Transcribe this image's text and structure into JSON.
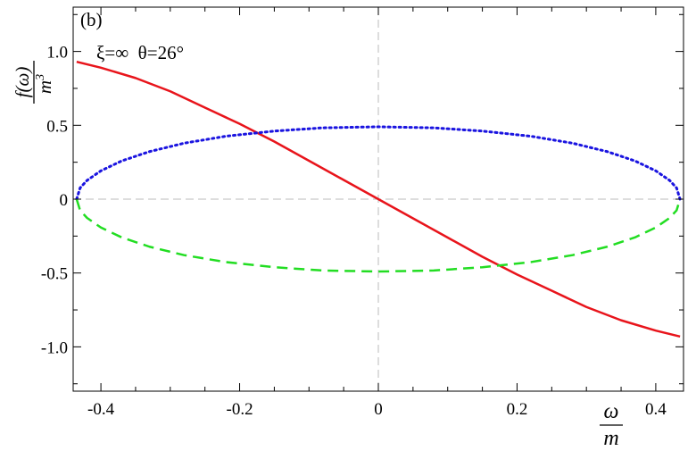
{
  "panel_label": "(b)",
  "annotation": "ξ=∞  θ=26°",
  "ylabel": {
    "numerator": "f(ω)",
    "denominator": "m",
    "exponent": "3"
  },
  "xlabel": {
    "numerator": "ω",
    "denominator": "m"
  },
  "chart_data": {
    "type": "line",
    "title": "",
    "xlim": [
      -0.44,
      0.44
    ],
    "ylim": [
      -1.3,
      1.3
    ],
    "grid": false,
    "zero_lines": true,
    "x_ticks": [
      -0.4,
      -0.2,
      0,
      0.2,
      0.4
    ],
    "x_tick_labels": [
      "-0.4",
      "-0.2",
      "0",
      "0.2",
      "0.4"
    ],
    "y_ticks": [
      1.0,
      0.5,
      0,
      -0.5,
      -1.0
    ],
    "y_tick_labels": [
      "1.0",
      "0.5",
      "0",
      "-0.5",
      "-1.0"
    ],
    "series": [
      {
        "color": "#e8141b",
        "style": "solid",
        "x": [
          -0.435,
          -0.4,
          -0.35,
          -0.3,
          -0.25,
          -0.2,
          -0.15,
          -0.1,
          -0.05,
          0,
          0.05,
          0.1,
          0.15,
          0.2,
          0.25,
          0.3,
          0.35,
          0.4,
          0.435
        ],
        "y": [
          0.93,
          0.89,
          0.82,
          0.73,
          0.62,
          0.51,
          0.39,
          0.26,
          0.13,
          0,
          -0.13,
          -0.26,
          -0.39,
          -0.51,
          -0.62,
          -0.73,
          -0.82,
          -0.89,
          -0.93
        ]
      },
      {
        "color": "#1a14e0",
        "style": "dotted",
        "x": [
          -0.435,
          -0.43,
          -0.42,
          -0.4,
          -0.37,
          -0.33,
          -0.28,
          -0.22,
          -0.15,
          -0.08,
          0,
          0.08,
          0.15,
          0.22,
          0.28,
          0.33,
          0.37,
          0.4,
          0.42,
          0.43,
          0.435
        ],
        "y": [
          0,
          0.076,
          0.127,
          0.192,
          0.259,
          0.322,
          0.379,
          0.426,
          0.461,
          0.483,
          0.49,
          0.483,
          0.461,
          0.426,
          0.379,
          0.322,
          0.259,
          0.192,
          0.127,
          0.076,
          0
        ]
      },
      {
        "color": "#22dd22",
        "style": "dashed",
        "x": [
          -0.435,
          -0.43,
          -0.42,
          -0.4,
          -0.37,
          -0.33,
          -0.28,
          -0.22,
          -0.15,
          -0.08,
          0,
          0.08,
          0.15,
          0.22,
          0.28,
          0.33,
          0.37,
          0.4,
          0.42,
          0.43,
          0.435
        ],
        "y": [
          0,
          -0.076,
          -0.127,
          -0.192,
          -0.259,
          -0.322,
          -0.379,
          -0.426,
          -0.461,
          -0.483,
          -0.49,
          -0.483,
          -0.461,
          -0.426,
          -0.379,
          -0.322,
          -0.259,
          -0.192,
          -0.127,
          -0.076,
          0
        ]
      }
    ]
  }
}
